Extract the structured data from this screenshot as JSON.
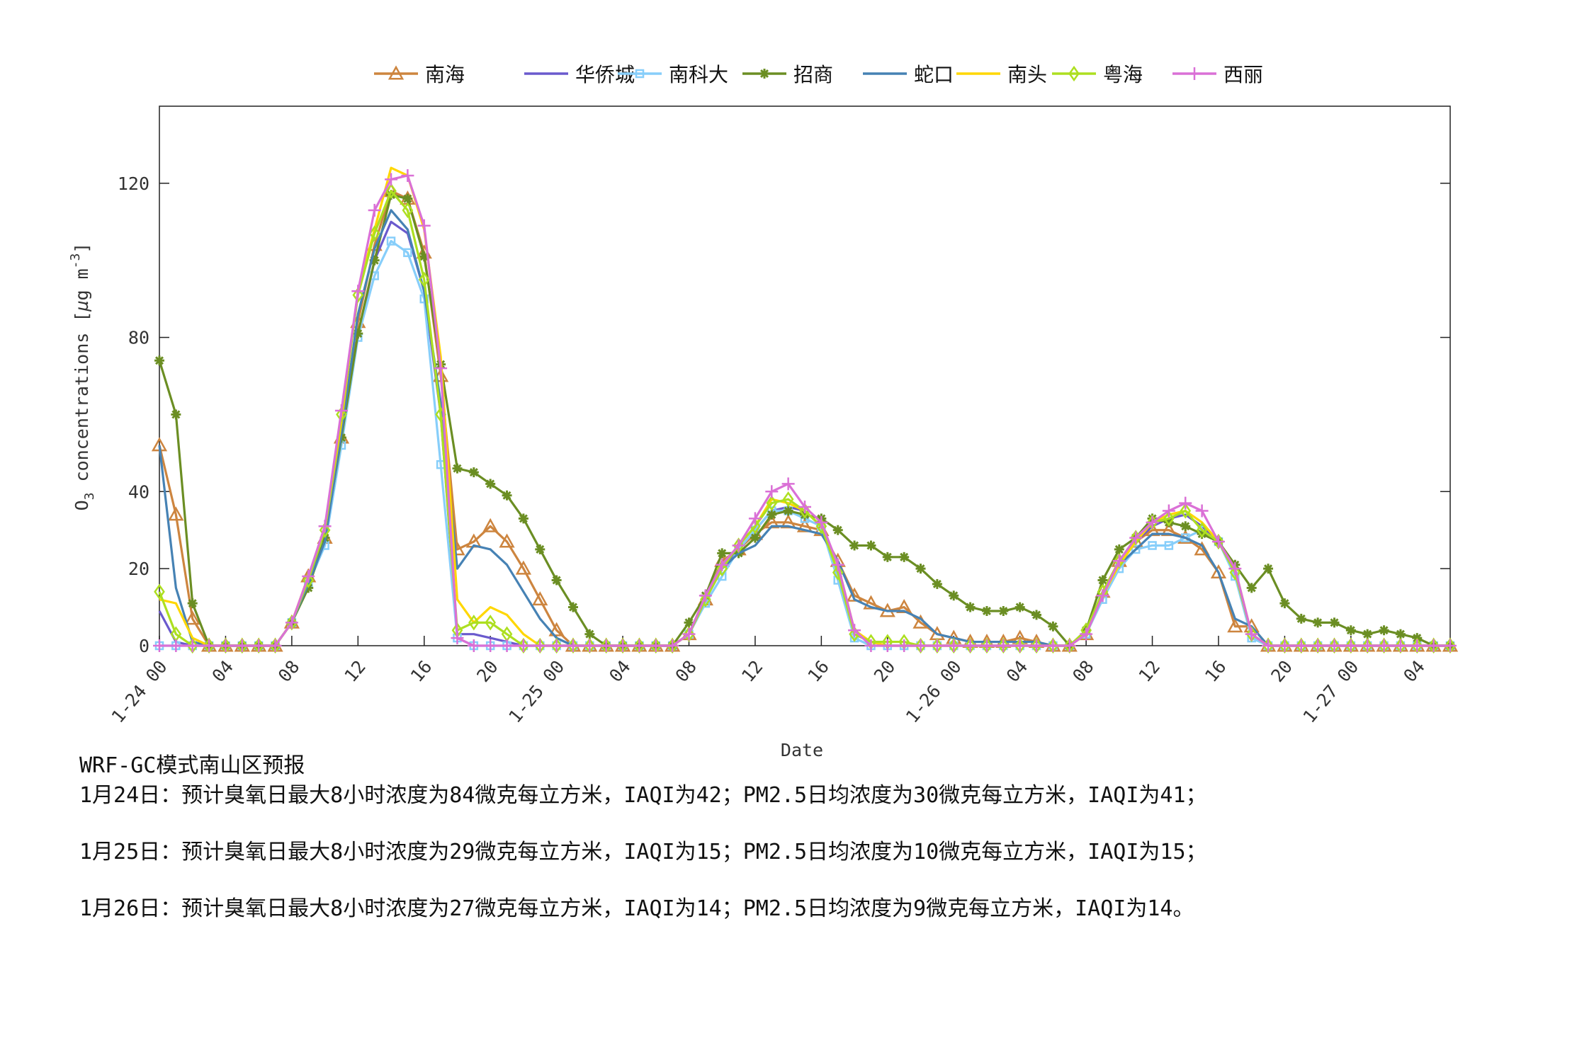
{
  "chart_data": {
    "type": "line",
    "title": "",
    "xlabel": "Date",
    "ylabel": "O3 concentrations [µg m-3]",
    "ylim": [
      0,
      140
    ],
    "xlim_hours": [
      0,
      78
    ],
    "y_ticks": [
      0,
      20,
      40,
      80,
      120
    ],
    "x_ticks": [
      {
        "h": 0,
        "label": "1-24 00"
      },
      {
        "h": 4,
        "label": "04"
      },
      {
        "h": 8,
        "label": "08"
      },
      {
        "h": 12,
        "label": "12"
      },
      {
        "h": 16,
        "label": "16"
      },
      {
        "h": 20,
        "label": "20"
      },
      {
        "h": 24,
        "label": "1-25 00"
      },
      {
        "h": 28,
        "label": "04"
      },
      {
        "h": 32,
        "label": "08"
      },
      {
        "h": 36,
        "label": "12"
      },
      {
        "h": 40,
        "label": "16"
      },
      {
        "h": 44,
        "label": "20"
      },
      {
        "h": 48,
        "label": "1-26 00"
      },
      {
        "h": 52,
        "label": "04"
      },
      {
        "h": 56,
        "label": "08"
      },
      {
        "h": 60,
        "label": "12"
      },
      {
        "h": 64,
        "label": "16"
      },
      {
        "h": 68,
        "label": "20"
      },
      {
        "h": 72,
        "label": "1-27 00"
      },
      {
        "h": 76,
        "label": "04"
      }
    ],
    "grid": false,
    "legend_position": "top",
    "x_hours": [
      0,
      1,
      2,
      3,
      4,
      5,
      6,
      7,
      8,
      9,
      10,
      11,
      12,
      13,
      14,
      15,
      16,
      17,
      18,
      19,
      20,
      21,
      22,
      23,
      24,
      25,
      26,
      27,
      28,
      29,
      30,
      31,
      32,
      33,
      34,
      35,
      36,
      37,
      38,
      39,
      40,
      41,
      42,
      43,
      44,
      45,
      46,
      47,
      48,
      49,
      50,
      51,
      52,
      53,
      54,
      55,
      56,
      57,
      58,
      59,
      60,
      61,
      62,
      63,
      64,
      65,
      66,
      67,
      68,
      69,
      70,
      71,
      72,
      73,
      74,
      75,
      76,
      77,
      78
    ],
    "series": [
      {
        "name": "南海",
        "color": "#CD853F",
        "marker": "triangle",
        "values": [
          52,
          34,
          7,
          0,
          0,
          0,
          0,
          0,
          6,
          18,
          28,
          54,
          84,
          104,
          118,
          116,
          102,
          70,
          25,
          27,
          31,
          27,
          20,
          12,
          4,
          0,
          0,
          0,
          0,
          0,
          0,
          0,
          3,
          12,
          22,
          25,
          29,
          32,
          32,
          31,
          30,
          22,
          13,
          11,
          9,
          10,
          6,
          3,
          2,
          1,
          1,
          1,
          2,
          1,
          0,
          0,
          3,
          14,
          22,
          27,
          30,
          30,
          28,
          25,
          19,
          5,
          5,
          0,
          0,
          0,
          0,
          0,
          0,
          0,
          0,
          0,
          0,
          0,
          0
        ]
      },
      {
        "name": "华侨城",
        "color": "#6A5ACD",
        "marker": "none",
        "values": [
          9,
          1,
          0,
          0,
          0,
          0,
          0,
          0,
          6,
          17,
          28,
          56,
          80,
          100,
          110,
          107,
          92,
          60,
          3,
          3,
          2,
          1,
          0,
          0,
          0,
          0,
          0,
          0,
          0,
          0,
          0,
          0,
          3,
          12,
          20,
          25,
          30,
          35,
          36,
          35,
          31,
          18,
          3,
          1,
          0,
          0,
          0,
          0,
          0,
          0,
          0,
          0,
          0,
          0,
          0,
          0,
          3,
          14,
          21,
          27,
          31,
          33,
          34,
          31,
          27,
          19,
          3,
          0,
          0,
          0,
          0,
          0,
          0,
          0,
          0,
          0,
          0,
          0,
          0
        ]
      },
      {
        "name": "南科大",
        "color": "#87CEFA",
        "marker": "square",
        "values": [
          0,
          0,
          0,
          0,
          0,
          0,
          0,
          0,
          6,
          16,
          26,
          52,
          80,
          96,
          105,
          102,
          90,
          47,
          2,
          0,
          0,
          0,
          0,
          0,
          0,
          0,
          0,
          0,
          0,
          0,
          0,
          0,
          3,
          11,
          18,
          25,
          30,
          35,
          35,
          33,
          31,
          17,
          2,
          0,
          0,
          0,
          0,
          0,
          0,
          0,
          0,
          0,
          0,
          0,
          0,
          0,
          3,
          12,
          20,
          25,
          26,
          26,
          28,
          30,
          27,
          18,
          2,
          0,
          0,
          0,
          0,
          0,
          0,
          0,
          0,
          0,
          0,
          0,
          0
        ]
      },
      {
        "name": "招商",
        "color": "#6B8E23",
        "marker": "star",
        "values": [
          74,
          60,
          11,
          0,
          0,
          0,
          0,
          0,
          6,
          15,
          28,
          54,
          81,
          100,
          117,
          116,
          101,
          73,
          46,
          45,
          42,
          39,
          33,
          25,
          17,
          10,
          3,
          0,
          0,
          0,
          0,
          0,
          6,
          13,
          24,
          24,
          28,
          34,
          35,
          34,
          33,
          30,
          26,
          26,
          23,
          23,
          20,
          16,
          13,
          10,
          9,
          9,
          10,
          8,
          5,
          0,
          4,
          17,
          25,
          28,
          33,
          32,
          31,
          29,
          27,
          21,
          15,
          20,
          11,
          7,
          6,
          6,
          4,
          3,
          4,
          3,
          2,
          0,
          0
        ]
      },
      {
        "name": "蛇口",
        "color": "#4682B4",
        "marker": "none",
        "values": [
          52,
          15,
          1,
          0,
          0,
          0,
          0,
          0,
          6,
          16,
          27,
          55,
          86,
          103,
          113,
          108,
          92,
          63,
          20,
          26,
          25,
          21,
          14,
          7,
          2,
          0,
          0,
          0,
          0,
          0,
          0,
          0,
          3,
          12,
          20,
          24,
          26,
          31,
          31,
          30,
          29,
          22,
          12,
          10,
          9,
          9,
          7,
          3,
          2,
          1,
          1,
          1,
          1,
          1,
          0,
          0,
          3,
          14,
          21,
          25,
          29,
          29,
          28,
          26,
          19,
          7,
          5,
          0,
          0,
          0,
          0,
          0,
          0,
          0,
          0,
          0,
          0,
          0,
          0
        ]
      },
      {
        "name": "南头",
        "color": "#FFD700",
        "marker": "none",
        "values": [
          12,
          11,
          2,
          0,
          0,
          0,
          0,
          0,
          6,
          18,
          30,
          58,
          92,
          108,
          124,
          122,
          108,
          75,
          12,
          6,
          10,
          8,
          3,
          0,
          0,
          0,
          0,
          0,
          0,
          0,
          0,
          0,
          3,
          12,
          21,
          26,
          31,
          38,
          37,
          35,
          31,
          21,
          4,
          1,
          0,
          0,
          0,
          0,
          0,
          0,
          0,
          0,
          0,
          0,
          0,
          0,
          3,
          13,
          21,
          27,
          32,
          34,
          35,
          32,
          27,
          20,
          3,
          0,
          0,
          0,
          0,
          0,
          0,
          0,
          0,
          0,
          0,
          0,
          0
        ]
      },
      {
        "name": "粤海",
        "color": "#ADDF20",
        "marker": "diamond",
        "values": [
          14,
          3,
          0,
          0,
          0,
          0,
          0,
          0,
          6,
          17,
          30,
          60,
          91,
          107,
          118,
          113,
          95,
          60,
          4,
          6,
          6,
          3,
          0,
          0,
          0,
          0,
          0,
          0,
          0,
          0,
          0,
          0,
          3,
          12,
          20,
          26,
          31,
          37,
          38,
          35,
          31,
          19,
          3,
          1,
          1,
          1,
          0,
          0,
          0,
          0,
          0,
          0,
          0,
          0,
          0,
          0,
          4,
          14,
          22,
          28,
          32,
          33,
          35,
          30,
          27,
          19,
          3,
          0,
          0,
          0,
          0,
          0,
          0,
          0,
          0,
          0,
          0,
          0,
          0
        ]
      },
      {
        "name": "西丽",
        "color": "#DA70D6",
        "marker": "plus",
        "values": [
          0,
          0,
          0,
          0,
          0,
          0,
          0,
          0,
          6,
          18,
          31,
          61,
          92,
          113,
          121,
          122,
          109,
          72,
          2,
          0,
          0,
          0,
          0,
          0,
          0,
          0,
          0,
          0,
          0,
          0,
          0,
          0,
          3,
          13,
          21,
          26,
          33,
          40,
          42,
          36,
          32,
          21,
          4,
          0,
          0,
          0,
          0,
          0,
          0,
          0,
          0,
          0,
          0,
          0,
          0,
          0,
          3,
          13,
          22,
          28,
          32,
          35,
          37,
          35,
          27,
          20,
          3,
          0,
          0,
          0,
          0,
          0,
          0,
          0,
          0,
          0,
          0,
          0,
          0
        ]
      }
    ]
  },
  "legend": {
    "items": [
      "南海",
      "华侨城",
      "南科大",
      "招商",
      "蛇口",
      "南头",
      "粤海",
      "西丽"
    ]
  },
  "axes": {
    "xlabel": "Date",
    "ylabel_main": "O",
    "ylabel_sub": "3",
    "ylabel_rest": " concentrations [",
    "ylabel_mu": "µ",
    "ylabel_unit": "g m",
    "ylabel_exp": "-3",
    "ylabel_close": "]"
  },
  "notes": {
    "title": "WRF-GC模式南山区预报",
    "lines": [
      "1月24日：预计臭氧日最大8小时浓度为84微克每立方米，IAQI为42；PM2.5日均浓度为30微克每立方米，IAQI为41；",
      "1月25日：预计臭氧日最大8小时浓度为29微克每立方米，IAQI为15；PM2.5日均浓度为10微克每立方米，IAQI为15；",
      "1月26日：预计臭氧日最大8小时浓度为27微克每立方米，IAQI为14；PM2.5日均浓度为9微克每立方米，IAQI为14。"
    ]
  }
}
